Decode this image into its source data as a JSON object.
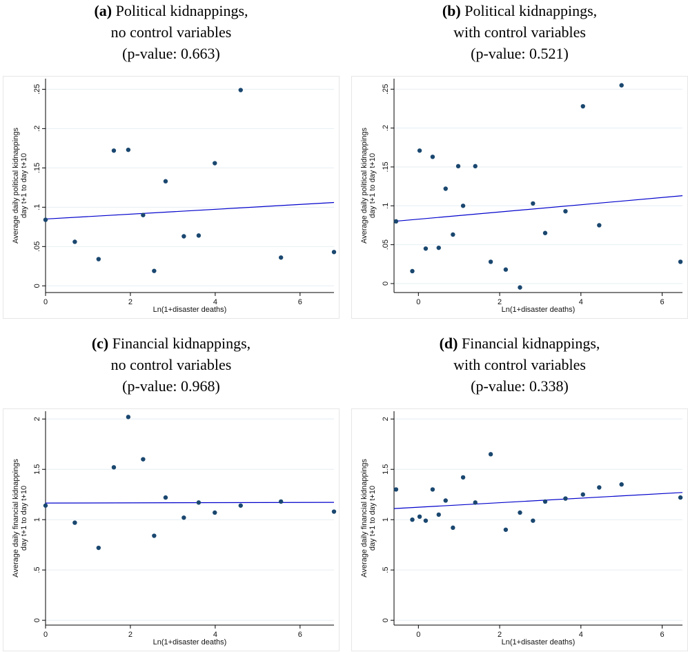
{
  "colors": {
    "point": "#1a476f",
    "fit": "#0000cc",
    "grid": "#e6eef2",
    "frame": "#e6e6e6",
    "axis": "#000000"
  },
  "chart_data": [
    {
      "type": "scatter",
      "title_tag": "(a)",
      "title_main": "Political kidnappings,",
      "subtitle1": "no control variables",
      "subtitle2": "(p-value: 0.663)",
      "xlabel": "Ln(1+disaster deaths)",
      "ylabel_line1": "Average daily political kidnappings",
      "ylabel_line2": "day t+1 to day t+10",
      "xlim": [
        0,
        6.8
      ],
      "ylim": [
        -0.005,
        0.26
      ],
      "xticks": [
        0,
        2,
        4,
        6
      ],
      "yticks": [
        0,
        0.05,
        0.1,
        0.15,
        0.2,
        0.25
      ],
      "xtick_labels": [
        "0",
        "2",
        "4",
        "6"
      ],
      "ytick_labels": [
        "0",
        ".05",
        ".1",
        ".15",
        ".2",
        ".25"
      ],
      "grid": true,
      "points": [
        {
          "x": 0,
          "y": 0.084
        },
        {
          "x": 0.69,
          "y": 0.056
        },
        {
          "x": 1.25,
          "y": 0.034
        },
        {
          "x": 1.61,
          "y": 0.172
        },
        {
          "x": 1.95,
          "y": 0.173
        },
        {
          "x": 2.3,
          "y": 0.09
        },
        {
          "x": 2.56,
          "y": 0.019
        },
        {
          "x": 2.83,
          "y": 0.133
        },
        {
          "x": 3.26,
          "y": 0.063
        },
        {
          "x": 3.61,
          "y": 0.064
        },
        {
          "x": 3.99,
          "y": 0.156
        },
        {
          "x": 4.6,
          "y": 0.249
        },
        {
          "x": 5.55,
          "y": 0.036
        },
        {
          "x": 6.8,
          "y": 0.043
        }
      ],
      "fit_line": {
        "x": [
          0,
          6.8
        ],
        "y": [
          0.085,
          0.106
        ]
      }
    },
    {
      "type": "scatter",
      "title_tag": "(b)",
      "title_main": "Political kidnappings,",
      "subtitle1": "with control variables",
      "subtitle2": "(p-value: 0.521)",
      "xlabel": "Ln(1+disaster deaths)",
      "ylabel_line1": "Average daily political kidnappings",
      "ylabel_line2": "day t+1 to day t+10",
      "xlim": [
        -0.6,
        6.5
      ],
      "ylim": [
        -0.008,
        0.26
      ],
      "xticks": [
        0,
        2,
        4,
        6
      ],
      "yticks": [
        0,
        0.05,
        0.1,
        0.15,
        0.2,
        0.25
      ],
      "xtick_labels": [
        "0",
        "2",
        "4",
        "6"
      ],
      "ytick_labels": [
        "0",
        ".05",
        ".1",
        ".15",
        ".2",
        ".25"
      ],
      "grid": true,
      "points": [
        {
          "x": -0.55,
          "y": 0.08
        },
        {
          "x": -0.15,
          "y": 0.016
        },
        {
          "x": 0.03,
          "y": 0.171
        },
        {
          "x": 0.18,
          "y": 0.045
        },
        {
          "x": 0.35,
          "y": 0.163
        },
        {
          "x": 0.5,
          "y": 0.046
        },
        {
          "x": 0.67,
          "y": 0.122
        },
        {
          "x": 0.85,
          "y": 0.063
        },
        {
          "x": 0.98,
          "y": 0.151
        },
        {
          "x": 1.1,
          "y": 0.1
        },
        {
          "x": 1.4,
          "y": 0.151
        },
        {
          "x": 1.78,
          "y": 0.028
        },
        {
          "x": 2.15,
          "y": 0.018
        },
        {
          "x": 2.5,
          "y": -0.005
        },
        {
          "x": 2.82,
          "y": 0.103
        },
        {
          "x": 3.12,
          "y": 0.065
        },
        {
          "x": 3.62,
          "y": 0.093
        },
        {
          "x": 4.05,
          "y": 0.228
        },
        {
          "x": 4.45,
          "y": 0.075
        },
        {
          "x": 5.0,
          "y": 0.255
        },
        {
          "x": 6.45,
          "y": 0.028
        }
      ],
      "fit_line": {
        "x": [
          -0.6,
          6.5
        ],
        "y": [
          0.08,
          0.113
        ]
      }
    },
    {
      "type": "scatter",
      "title_tag": "(c)",
      "title_main": "Financial kidnappings,",
      "subtitle1": "no control variables",
      "subtitle2": "(p-value: 0.968)",
      "xlabel": "Ln(1+disaster deaths)",
      "ylabel_line1": "Average daily financial kidnappings",
      "ylabel_line2": "day t+1 to day t+10",
      "xlim": [
        0,
        6.8
      ],
      "ylim": [
        -0.02,
        2.05
      ],
      "xticks": [
        0,
        2,
        4,
        6
      ],
      "yticks": [
        0,
        0.5,
        1,
        1.5,
        2
      ],
      "xtick_labels": [
        "0",
        "2",
        "4",
        "6"
      ],
      "ytick_labels": [
        "0",
        ".5",
        "1",
        "1.5",
        "2"
      ],
      "grid": true,
      "points": [
        {
          "x": 0,
          "y": 1.14
        },
        {
          "x": 0.69,
          "y": 0.97
        },
        {
          "x": 1.25,
          "y": 0.72
        },
        {
          "x": 1.61,
          "y": 1.52
        },
        {
          "x": 1.95,
          "y": 2.02
        },
        {
          "x": 2.3,
          "y": 1.6
        },
        {
          "x": 2.56,
          "y": 0.84
        },
        {
          "x": 2.83,
          "y": 1.22
        },
        {
          "x": 3.26,
          "y": 1.02
        },
        {
          "x": 3.61,
          "y": 1.17
        },
        {
          "x": 3.99,
          "y": 1.07
        },
        {
          "x": 4.6,
          "y": 1.14
        },
        {
          "x": 5.55,
          "y": 1.18
        },
        {
          "x": 6.8,
          "y": 1.08
        }
      ],
      "fit_line": {
        "x": [
          0,
          6.8
        ],
        "y": [
          1.165,
          1.172
        ]
      }
    },
    {
      "type": "scatter",
      "title_tag": "(d)",
      "title_main": "Financial kidnappings,",
      "subtitle1": "with control variables",
      "subtitle2": "(p-value: 0.338)",
      "xlabel": "Ln(1+disaster deaths)",
      "ylabel_line1": "Average daily financial kidnappings",
      "ylabel_line2": "day t+1 to day t+10",
      "xlim": [
        -0.6,
        6.5
      ],
      "ylim": [
        -0.02,
        2.05
      ],
      "xticks": [
        0,
        2,
        4,
        6
      ],
      "yticks": [
        0,
        0.5,
        1,
        1.5,
        2
      ],
      "xtick_labels": [
        "0",
        "2",
        "4",
        "6"
      ],
      "ytick_labels": [
        "0",
        ".5",
        "1",
        "1.5",
        "2"
      ],
      "grid": true,
      "points": [
        {
          "x": -0.55,
          "y": 1.3
        },
        {
          "x": -0.15,
          "y": 1.0
        },
        {
          "x": 0.03,
          "y": 1.03
        },
        {
          "x": 0.18,
          "y": 0.99
        },
        {
          "x": 0.35,
          "y": 1.3
        },
        {
          "x": 0.5,
          "y": 1.05
        },
        {
          "x": 0.67,
          "y": 1.19
        },
        {
          "x": 0.85,
          "y": 0.92
        },
        {
          "x": 1.1,
          "y": 1.42
        },
        {
          "x": 1.4,
          "y": 1.17
        },
        {
          "x": 1.78,
          "y": 1.65
        },
        {
          "x": 2.15,
          "y": 0.9
        },
        {
          "x": 2.5,
          "y": 1.07
        },
        {
          "x": 2.82,
          "y": 0.99
        },
        {
          "x": 3.12,
          "y": 1.18
        },
        {
          "x": 3.62,
          "y": 1.21
        },
        {
          "x": 4.05,
          "y": 1.25
        },
        {
          "x": 4.45,
          "y": 1.32
        },
        {
          "x": 5.0,
          "y": 1.35
        },
        {
          "x": 6.45,
          "y": 1.22
        }
      ],
      "fit_line": {
        "x": [
          -0.6,
          6.5
        ],
        "y": [
          1.11,
          1.27
        ]
      }
    }
  ]
}
